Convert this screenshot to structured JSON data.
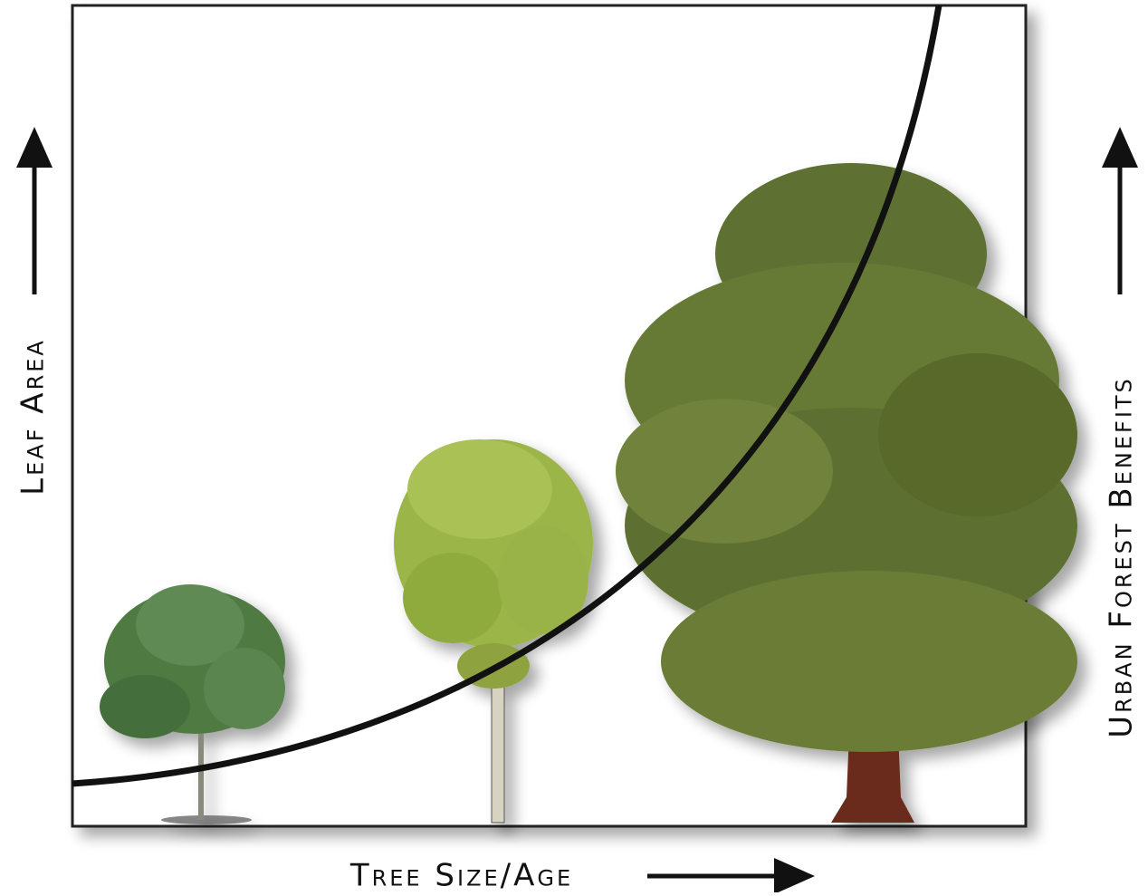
{
  "axes": {
    "y_left_label": "Leaf Area",
    "y_right_label": "Urban Forest Benefits",
    "x_label": "Tree Size/Age"
  }
}
